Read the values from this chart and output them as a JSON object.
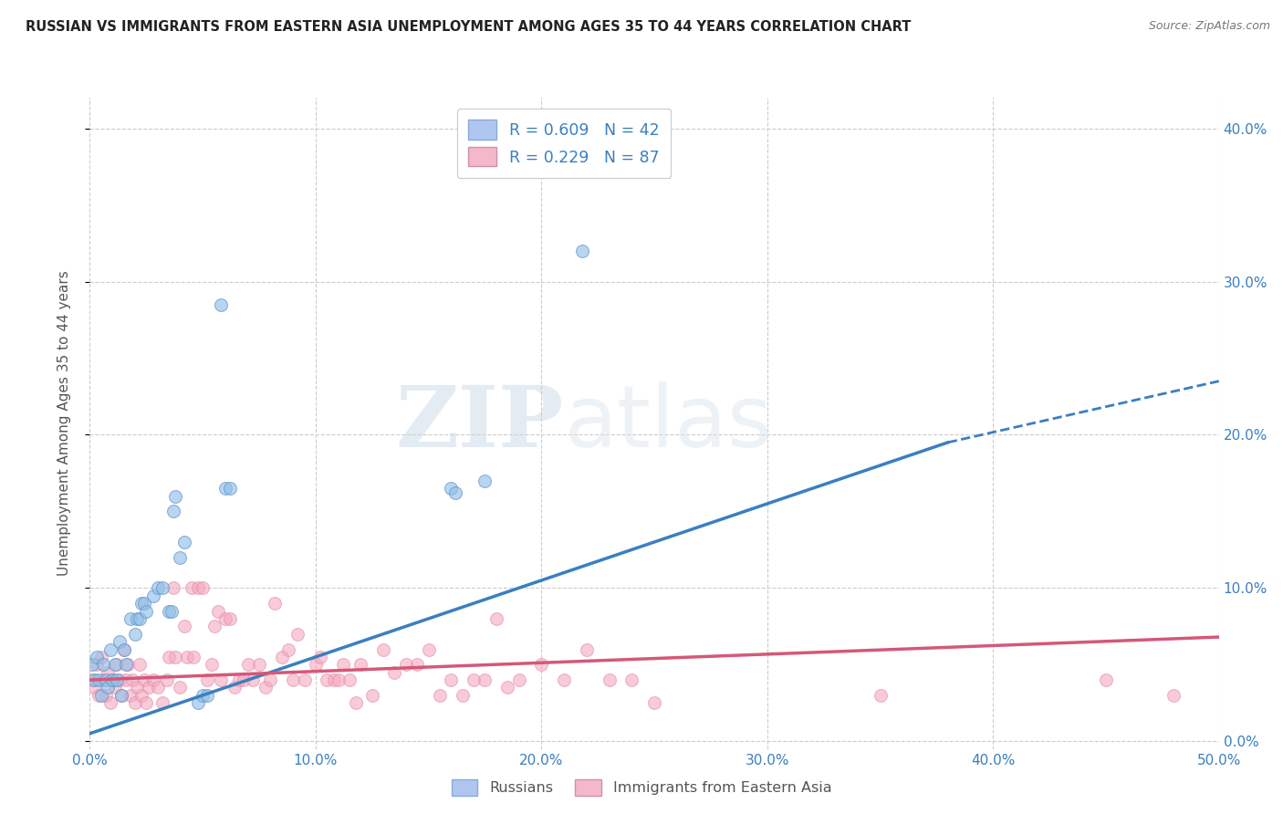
{
  "title": "RUSSIAN VS IMMIGRANTS FROM EASTERN ASIA UNEMPLOYMENT AMONG AGES 35 TO 44 YEARS CORRELATION CHART",
  "source": "Source: ZipAtlas.com",
  "ylabel": "Unemployment Among Ages 35 to 44 years",
  "xlim": [
    0.0,
    0.5
  ],
  "ylim": [
    -0.005,
    0.42
  ],
  "xticks": [
    0.0,
    0.1,
    0.2,
    0.3,
    0.4,
    0.5
  ],
  "xtick_labels": [
    "0.0%",
    "10.0%",
    "20.0%",
    "30.0%",
    "40.0%",
    "50.0%"
  ],
  "yticks": [
    0.0,
    0.1,
    0.2,
    0.3,
    0.4
  ],
  "ytick_labels": [
    "0.0%",
    "10.0%",
    "20.0%",
    "30.0%",
    "40.0%"
  ],
  "blue_color": "#92c0e8",
  "pink_color": "#f5a8be",
  "blue_line_color": "#3a7fc1",
  "pink_line_color": "#d45878",
  "blue_line": {
    "x0": 0.0,
    "y0": 0.005,
    "x1": 0.38,
    "y1": 0.195,
    "xdash1": 0.38,
    "ydash1": 0.195,
    "xdash2": 0.5,
    "ydash2": 0.235
  },
  "pink_line": {
    "x0": 0.0,
    "y0": 0.04,
    "x1": 0.5,
    "y1": 0.068
  },
  "blue_scatter": [
    [
      0.001,
      0.05
    ],
    [
      0.002,
      0.04
    ],
    [
      0.003,
      0.055
    ],
    [
      0.004,
      0.04
    ],
    [
      0.005,
      0.03
    ],
    [
      0.006,
      0.05
    ],
    [
      0.007,
      0.04
    ],
    [
      0.008,
      0.035
    ],
    [
      0.009,
      0.06
    ],
    [
      0.01,
      0.04
    ],
    [
      0.011,
      0.05
    ],
    [
      0.012,
      0.04
    ],
    [
      0.013,
      0.065
    ],
    [
      0.014,
      0.03
    ],
    [
      0.015,
      0.06
    ],
    [
      0.016,
      0.05
    ],
    [
      0.018,
      0.08
    ],
    [
      0.02,
      0.07
    ],
    [
      0.021,
      0.08
    ],
    [
      0.022,
      0.08
    ],
    [
      0.023,
      0.09
    ],
    [
      0.024,
      0.09
    ],
    [
      0.025,
      0.085
    ],
    [
      0.028,
      0.095
    ],
    [
      0.03,
      0.1
    ],
    [
      0.032,
      0.1
    ],
    [
      0.035,
      0.085
    ],
    [
      0.036,
      0.085
    ],
    [
      0.037,
      0.15
    ],
    [
      0.038,
      0.16
    ],
    [
      0.04,
      0.12
    ],
    [
      0.042,
      0.13
    ],
    [
      0.048,
      0.025
    ],
    [
      0.05,
      0.03
    ],
    [
      0.052,
      0.03
    ],
    [
      0.058,
      0.285
    ],
    [
      0.06,
      0.165
    ],
    [
      0.062,
      0.165
    ],
    [
      0.16,
      0.165
    ],
    [
      0.162,
      0.162
    ],
    [
      0.175,
      0.17
    ],
    [
      0.218,
      0.32
    ]
  ],
  "pink_scatter": [
    [
      0.001,
      0.04
    ],
    [
      0.002,
      0.035
    ],
    [
      0.003,
      0.05
    ],
    [
      0.004,
      0.03
    ],
    [
      0.005,
      0.055
    ],
    [
      0.006,
      0.04
    ],
    [
      0.007,
      0.03
    ],
    [
      0.008,
      0.045
    ],
    [
      0.009,
      0.025
    ],
    [
      0.01,
      0.04
    ],
    [
      0.011,
      0.035
    ],
    [
      0.012,
      0.05
    ],
    [
      0.013,
      0.04
    ],
    [
      0.014,
      0.03
    ],
    [
      0.015,
      0.06
    ],
    [
      0.016,
      0.04
    ],
    [
      0.017,
      0.05
    ],
    [
      0.018,
      0.03
    ],
    [
      0.019,
      0.04
    ],
    [
      0.02,
      0.025
    ],
    [
      0.021,
      0.035
    ],
    [
      0.022,
      0.05
    ],
    [
      0.023,
      0.03
    ],
    [
      0.024,
      0.04
    ],
    [
      0.025,
      0.025
    ],
    [
      0.026,
      0.035
    ],
    [
      0.028,
      0.04
    ],
    [
      0.03,
      0.035
    ],
    [
      0.032,
      0.025
    ],
    [
      0.034,
      0.04
    ],
    [
      0.035,
      0.055
    ],
    [
      0.037,
      0.1
    ],
    [
      0.038,
      0.055
    ],
    [
      0.04,
      0.035
    ],
    [
      0.042,
      0.075
    ],
    [
      0.043,
      0.055
    ],
    [
      0.045,
      0.1
    ],
    [
      0.046,
      0.055
    ],
    [
      0.048,
      0.1
    ],
    [
      0.05,
      0.1
    ],
    [
      0.052,
      0.04
    ],
    [
      0.054,
      0.05
    ],
    [
      0.055,
      0.075
    ],
    [
      0.057,
      0.085
    ],
    [
      0.058,
      0.04
    ],
    [
      0.06,
      0.08
    ],
    [
      0.062,
      0.08
    ],
    [
      0.064,
      0.035
    ],
    [
      0.066,
      0.04
    ],
    [
      0.068,
      0.04
    ],
    [
      0.07,
      0.05
    ],
    [
      0.072,
      0.04
    ],
    [
      0.075,
      0.05
    ],
    [
      0.078,
      0.035
    ],
    [
      0.08,
      0.04
    ],
    [
      0.082,
      0.09
    ],
    [
      0.085,
      0.055
    ],
    [
      0.088,
      0.06
    ],
    [
      0.09,
      0.04
    ],
    [
      0.092,
      0.07
    ],
    [
      0.095,
      0.04
    ],
    [
      0.1,
      0.05
    ],
    [
      0.102,
      0.055
    ],
    [
      0.105,
      0.04
    ],
    [
      0.108,
      0.04
    ],
    [
      0.11,
      0.04
    ],
    [
      0.112,
      0.05
    ],
    [
      0.115,
      0.04
    ],
    [
      0.118,
      0.025
    ],
    [
      0.12,
      0.05
    ],
    [
      0.125,
      0.03
    ],
    [
      0.13,
      0.06
    ],
    [
      0.135,
      0.045
    ],
    [
      0.14,
      0.05
    ],
    [
      0.145,
      0.05
    ],
    [
      0.15,
      0.06
    ],
    [
      0.155,
      0.03
    ],
    [
      0.16,
      0.04
    ],
    [
      0.165,
      0.03
    ],
    [
      0.17,
      0.04
    ],
    [
      0.175,
      0.04
    ],
    [
      0.18,
      0.08
    ],
    [
      0.185,
      0.035
    ],
    [
      0.19,
      0.04
    ],
    [
      0.2,
      0.05
    ],
    [
      0.21,
      0.04
    ],
    [
      0.22,
      0.06
    ],
    [
      0.23,
      0.04
    ],
    [
      0.24,
      0.04
    ],
    [
      0.25,
      0.025
    ],
    [
      0.35,
      0.03
    ],
    [
      0.45,
      0.04
    ],
    [
      0.48,
      0.03
    ]
  ],
  "watermark_zip": "ZIP",
  "watermark_atlas": "atlas",
  "background_color": "#ffffff",
  "grid_color": "#cccccc"
}
